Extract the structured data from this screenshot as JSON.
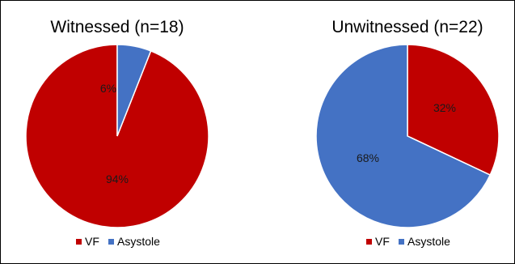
{
  "chart_data": [
    {
      "type": "pie",
      "title": "Witnessed (n=18)",
      "categories": [
        "VF",
        "Asystole"
      ],
      "values": [
        94,
        6
      ],
      "labels": [
        "94%",
        "6%"
      ],
      "colors": [
        "#c00000",
        "#4472c4"
      ],
      "legend": {
        "placement": "bottom",
        "entries": [
          "VF",
          "Asystole"
        ]
      }
    },
    {
      "type": "pie",
      "title": "Unwitnessed (n=22)",
      "categories": [
        "VF",
        "Asystole"
      ],
      "values": [
        32,
        68
      ],
      "labels": [
        "32%",
        "68%"
      ],
      "colors": [
        "#c00000",
        "#4472c4"
      ],
      "legend": {
        "placement": "bottom",
        "entries": [
          "VF",
          "Asystole"
        ]
      }
    }
  ]
}
